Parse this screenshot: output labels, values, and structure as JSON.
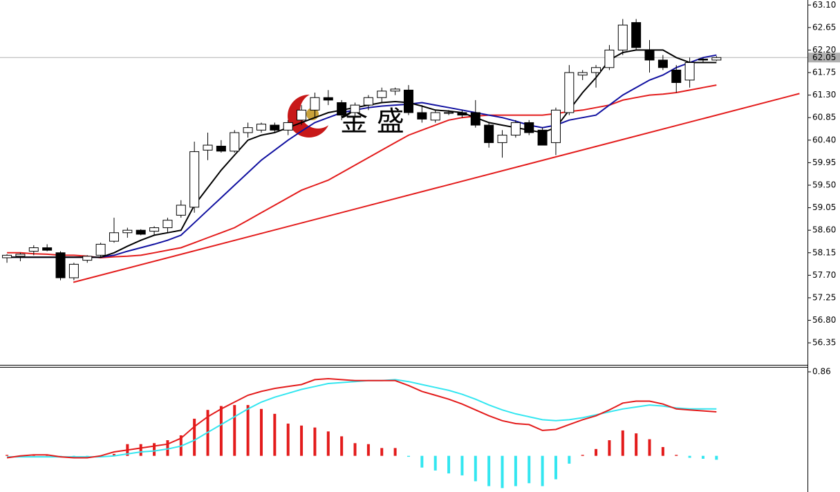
{
  "chart_data": [
    {
      "type": "candlestick",
      "watermark": "金 盛",
      "x": [
        0,
        1,
        2,
        3,
        4,
        5,
        6,
        7,
        8,
        9,
        10,
        11,
        12,
        13,
        14,
        15,
        16,
        17,
        18,
        19,
        20,
        21,
        22,
        23,
        24,
        25,
        26,
        27,
        28,
        29,
        30,
        31,
        32,
        33,
        34,
        35,
        36,
        37,
        38,
        39,
        40,
        41,
        42,
        43,
        44,
        45,
        46,
        47,
        48,
        49,
        50,
        51,
        52,
        53
      ],
      "open": [
        58.05,
        58.08,
        58.18,
        58.25,
        58.15,
        57.65,
        58.0,
        58.1,
        58.38,
        58.55,
        58.6,
        58.58,
        58.65,
        58.9,
        59.06,
        60.2,
        60.28,
        60.18,
        60.55,
        60.6,
        60.7,
        60.6,
        60.8,
        61.0,
        61.25,
        61.15,
        60.95,
        61.1,
        61.25,
        61.38,
        61.4,
        60.95,
        60.8,
        60.95,
        60.95,
        60.95,
        60.7,
        60.35,
        60.5,
        60.75,
        60.6,
        60.35,
        60.95,
        61.7,
        61.75,
        61.85,
        62.2,
        62.75,
        62.2,
        62.0,
        61.8,
        61.6,
        62.02,
        62.0
      ],
      "high": [
        58.12,
        58.15,
        58.3,
        58.32,
        58.18,
        57.95,
        58.1,
        58.35,
        58.85,
        58.65,
        58.62,
        58.68,
        58.85,
        59.2,
        60.37,
        60.55,
        60.4,
        60.6,
        60.75,
        60.75,
        60.75,
        60.8,
        61.1,
        61.35,
        61.4,
        61.2,
        61.15,
        61.3,
        61.45,
        61.45,
        61.5,
        61.1,
        61.0,
        61.0,
        61.0,
        61.2,
        60.75,
        60.6,
        60.8,
        60.8,
        60.65,
        61.05,
        61.9,
        61.8,
        61.9,
        62.3,
        62.82,
        62.82,
        62.4,
        62.1,
        61.9,
        62.05,
        62.05,
        62.08
      ],
      "low": [
        57.95,
        57.98,
        58.1,
        58.18,
        57.6,
        57.6,
        57.95,
        58.05,
        58.35,
        58.45,
        58.5,
        58.5,
        58.55,
        58.85,
        58.95,
        60.0,
        60.15,
        60.15,
        60.45,
        60.55,
        60.55,
        60.5,
        60.7,
        60.85,
        61.1,
        60.8,
        60.85,
        61.0,
        61.15,
        61.3,
        60.9,
        60.75,
        60.75,
        60.9,
        60.85,
        60.65,
        60.25,
        60.05,
        60.45,
        60.5,
        60.3,
        60.1,
        60.9,
        61.6,
        61.45,
        61.8,
        62.1,
        62.2,
        61.75,
        61.8,
        61.35,
        61.45,
        61.95,
        61.98
      ],
      "close": [
        58.1,
        58.12,
        58.25,
        58.2,
        57.65,
        57.92,
        58.08,
        58.32,
        58.55,
        58.6,
        58.52,
        58.65,
        58.8,
        59.1,
        60.17,
        60.3,
        60.18,
        60.55,
        60.65,
        60.72,
        60.6,
        60.75,
        61.0,
        61.25,
        61.2,
        60.9,
        61.1,
        61.25,
        61.38,
        61.42,
        60.95,
        60.82,
        60.95,
        60.95,
        60.9,
        60.7,
        60.35,
        60.5,
        60.75,
        60.55,
        60.3,
        61.0,
        61.75,
        61.75,
        61.85,
        62.2,
        62.7,
        62.25,
        62.0,
        61.85,
        61.55,
        61.95,
        62.0,
        62.05
      ],
      "up_color": "#ffffff",
      "down_color": "#000000",
      "candle_outline": "#000000",
      "lines": [
        {
          "color": "#000000",
          "values": [
            58.06,
            58.06,
            58.06,
            58.06,
            58.06,
            58.06,
            58.06,
            58.06,
            58.15,
            58.28,
            58.4,
            58.5,
            58.55,
            58.6,
            59.1,
            59.45,
            59.8,
            60.1,
            60.4,
            60.5,
            60.55,
            60.65,
            60.75,
            60.85,
            60.95,
            61.0,
            61.05,
            61.1,
            61.15,
            61.17,
            61.15,
            61.08,
            61.0,
            60.98,
            60.95,
            60.85,
            60.75,
            60.7,
            60.65,
            60.6,
            60.55,
            60.65,
            61.0,
            61.35,
            61.65,
            62.0,
            62.15,
            62.2,
            62.2,
            62.2,
            62.05,
            61.95,
            61.95,
            61.95
          ]
        },
        {
          "color": "#1010a0",
          "values": [
            58.06,
            58.06,
            58.06,
            58.06,
            58.06,
            58.06,
            58.06,
            58.06,
            58.1,
            58.18,
            58.25,
            58.32,
            58.4,
            58.5,
            58.75,
            59.0,
            59.25,
            59.5,
            59.75,
            60.0,
            60.2,
            60.4,
            60.58,
            60.75,
            60.85,
            60.95,
            61.0,
            61.05,
            61.08,
            61.1,
            61.12,
            61.15,
            61.1,
            61.05,
            61.0,
            60.95,
            60.9,
            60.85,
            60.78,
            60.7,
            60.65,
            60.7,
            60.8,
            60.85,
            60.9,
            61.1,
            61.3,
            61.45,
            61.6,
            61.7,
            61.85,
            61.95,
            62.05,
            62.1
          ]
        },
        {
          "color": "#e31b1b",
          "values": [
            58.15,
            58.15,
            58.13,
            58.12,
            58.1,
            58.1,
            58.08,
            58.05,
            58.07,
            58.08,
            58.1,
            58.15,
            58.2,
            58.25,
            58.35,
            58.45,
            58.55,
            58.65,
            58.8,
            58.95,
            59.1,
            59.25,
            59.4,
            59.5,
            59.6,
            59.75,
            59.9,
            60.05,
            60.2,
            60.35,
            60.5,
            60.6,
            60.7,
            60.8,
            60.85,
            60.88,
            60.9,
            60.9,
            60.9,
            60.9,
            60.9,
            60.93,
            60.97,
            61.0,
            61.05,
            61.1,
            61.2,
            61.25,
            61.3,
            61.32,
            61.35,
            61.4,
            61.45,
            61.5
          ]
        }
      ],
      "trendline": {
        "color": "#e31b1b",
        "x": [
          4.96,
          59.2
        ],
        "values": [
          57.56,
          61.33
        ]
      },
      "current_price": 62.05,
      "current_price_color": "#b0b0b0",
      "xlim": [
        -0.52,
        59.8
      ],
      "ylim": [
        55.91,
        63.2
      ],
      "yticks": [
        {
          "value": 63.1,
          "label": "63.10"
        },
        62.65,
        {
          "value": 62.2,
          "label": "62.20"
        },
        61.75,
        {
          "value": 61.3,
          "label": "61.30"
        },
        60.85,
        {
          "value": 60.4,
          "label": "60.40"
        },
        59.95,
        {
          "value": 59.5,
          "label": "59.50"
        },
        59.05,
        {
          "value": 58.6,
          "label": "58.60"
        },
        58.15,
        {
          "value": 57.7,
          "label": "57.70"
        },
        57.25,
        {
          "value": 56.8,
          "label": "56.80"
        },
        56.35
      ]
    },
    {
      "type": "macd",
      "histogram": [
        0.01,
        0,
        0.01,
        0.01,
        -0.01,
        -0.02,
        -0.02,
        0.005,
        0.02,
        0.12,
        0.12,
        0.13,
        0.16,
        0.21,
        0.38,
        0.47,
        0.51,
        0.52,
        0.52,
        0.48,
        0.43,
        0.33,
        0.31,
        0.29,
        0.25,
        0.2,
        0.13,
        0.12,
        0.08,
        0.08,
        -0.01,
        -0.12,
        -0.15,
        -0.18,
        -0.2,
        -0.26,
        -0.31,
        -0.33,
        -0.31,
        -0.28,
        -0.31,
        -0.24,
        -0.08,
        0.01,
        0.07,
        0.16,
        0.26,
        0.23,
        0.17,
        0.09,
        0.01,
        -0.02,
        -0.03,
        -0.04
      ],
      "pos_color": "#e31b1b",
      "neg_color": "#33e6f0",
      "lines": [
        {
          "color": "#e31b1b",
          "values": [
            -0.02,
            0,
            0.01,
            0.01,
            -0.01,
            -0.02,
            -0.02,
            0,
            0.04,
            0.06,
            0.08,
            0.1,
            0.12,
            0.18,
            0.3,
            0.4,
            0.48,
            0.55,
            0.62,
            0.66,
            0.69,
            0.71,
            0.73,
            0.78,
            0.79,
            0.78,
            0.77,
            0.77,
            0.77,
            0.77,
            0.72,
            0.66,
            0.62,
            0.58,
            0.53,
            0.47,
            0.41,
            0.36,
            0.33,
            0.32,
            0.26,
            0.27,
            0.32,
            0.37,
            0.41,
            0.47,
            0.54,
            0.56,
            0.56,
            0.53,
            0.48,
            0.47,
            0.46,
            0.45
          ]
        },
        {
          "color": "#33e6f0",
          "values": [
            -0.01,
            -0.01,
            -0.01,
            -0.01,
            -0.01,
            -0.01,
            -0.01,
            -0.01,
            0,
            0.02,
            0.04,
            0.05,
            0.07,
            0.1,
            0.16,
            0.24,
            0.32,
            0.4,
            0.48,
            0.55,
            0.6,
            0.64,
            0.68,
            0.71,
            0.74,
            0.75,
            0.76,
            0.77,
            0.77,
            0.78,
            0.76,
            0.73,
            0.7,
            0.67,
            0.63,
            0.58,
            0.52,
            0.47,
            0.43,
            0.4,
            0.37,
            0.36,
            0.37,
            0.39,
            0.42,
            0.45,
            0.48,
            0.5,
            0.52,
            0.51,
            0.49,
            0.48,
            0.48,
            0.48
          ]
        }
      ],
      "xlim": [
        -0.52,
        59.8
      ],
      "ylim": [
        -0.37,
        0.91
      ],
      "yticks": [
        0.86
      ]
    }
  ]
}
